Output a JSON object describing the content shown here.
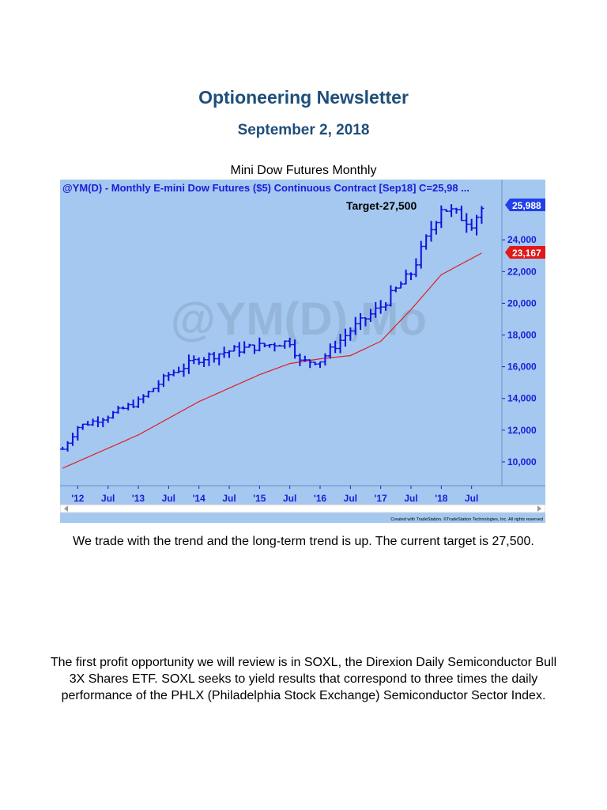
{
  "newsletter": {
    "title": "Optioneering Newsletter",
    "date": "September 2, 2018",
    "chart_caption": "Mini Dow Futures Monthly"
  },
  "paragraphs": [
    "We trade with the trend and the long-term trend is up. The current target is 27,500.",
    "The first profit opportunity we will review is in SOXL, the Direxion Daily Semiconductor Bull 3X Shares ETF. SOXL seeks to yield results that correspond to three times the daily performance of the PHLX (Philadelphia Stock Exchange) Semiconductor Sector Index."
  ],
  "chart_data": {
    "type": "bar",
    "subtype": "ohlc-monthly",
    "header": "@YM(D) - Monthly  E-mini Dow Futures ($5) Continuous Contract [Sep18]  C=25,98 ...",
    "watermark": "@YM(D),Mo",
    "annotation": "Target-27,500",
    "last_price_label": "25,988",
    "ma_price_label": "23,167",
    "credit": "Created with TradeStation. ©TradeStation Technologies, Inc. All rights reserved",
    "y_ticks": [
      "10,000",
      "12,000",
      "14,000",
      "16,000",
      "18,000",
      "20,000",
      "22,000",
      "24,000"
    ],
    "y_tick_values": [
      10000,
      12000,
      14000,
      16000,
      18000,
      20000,
      22000,
      24000
    ],
    "ylim": [
      8500,
      27800
    ],
    "x_ticks": [
      "'12",
      "Jul",
      "'13",
      "Jul",
      "'14",
      "Jul",
      "'15",
      "Jul",
      "'16",
      "Jul",
      "'17",
      "Jul",
      "'18",
      "Jul"
    ],
    "x_tick_months": [
      12,
      18,
      24,
      30,
      36,
      42,
      48,
      54,
      60,
      66,
      72,
      78,
      84,
      90
    ],
    "xlim": [
      8.5,
      96
    ],
    "month_origin": "2011-01",
    "grid": false,
    "colors": {
      "background": "#a4c8f0",
      "bars": "#1010e0",
      "moving_average": "#e02020",
      "last_price_badge": "#2040e8",
      "ma_badge": "#e01818",
      "text": "#1c1cd8"
    },
    "close_series": [
      {
        "month": 9,
        "close": 10800
      },
      {
        "month": 12,
        "close": 12200
      },
      {
        "month": 18,
        "close": 12900
      },
      {
        "month": 24,
        "close": 13800
      },
      {
        "month": 30,
        "close": 15500
      },
      {
        "month": 36,
        "close": 16500
      },
      {
        "month": 42,
        "close": 17000
      },
      {
        "month": 48,
        "close": 17300
      },
      {
        "month": 54,
        "close": 17600
      },
      {
        "month": 56,
        "close": 16300
      },
      {
        "month": 60,
        "close": 16400
      },
      {
        "month": 66,
        "close": 18300
      },
      {
        "month": 72,
        "close": 19800
      },
      {
        "month": 78,
        "close": 21900
      },
      {
        "month": 84,
        "close": 26100
      },
      {
        "month": 90,
        "close": 25100
      },
      {
        "month": 92,
        "close": 25988
      }
    ],
    "moving_average": [
      {
        "month": 9,
        "value": 9600
      },
      {
        "month": 24,
        "value": 11700
      },
      {
        "month": 36,
        "value": 13800
      },
      {
        "month": 48,
        "value": 15500
      },
      {
        "month": 54,
        "value": 16200
      },
      {
        "month": 60,
        "value": 16500
      },
      {
        "month": 66,
        "value": 16700
      },
      {
        "month": 72,
        "value": 17600
      },
      {
        "month": 78,
        "value": 19600
      },
      {
        "month": 84,
        "value": 21800
      },
      {
        "month": 92,
        "value": 23167
      }
    ]
  }
}
